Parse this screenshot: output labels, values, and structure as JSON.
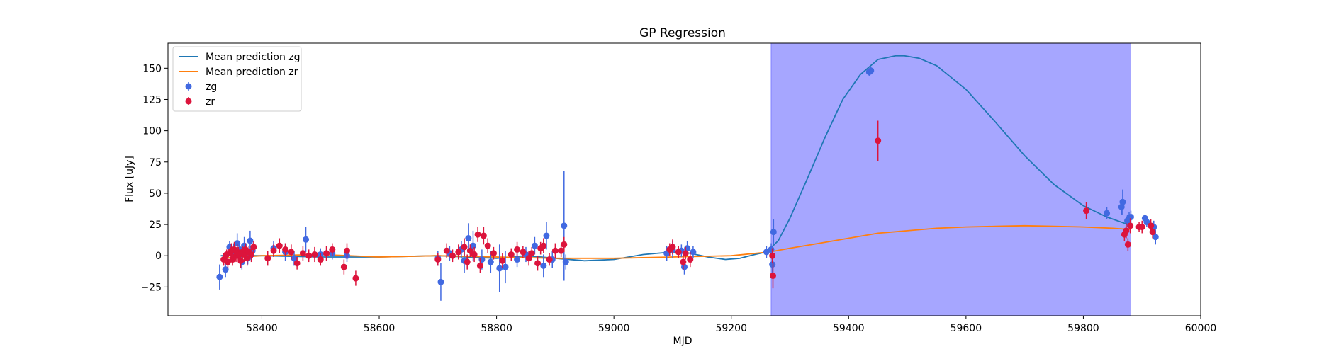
{
  "chart_data": {
    "type": "scatter",
    "title": "GP Regression",
    "xlabel": "MJD",
    "ylabel": "Flux [uJy]",
    "xlim": [
      58240,
      60000
    ],
    "ylim": [
      -48,
      170
    ],
    "xticks": [
      58400,
      58600,
      58800,
      59000,
      59200,
      59400,
      59600,
      59800,
      60000
    ],
    "yticks": [
      -25,
      0,
      25,
      50,
      75,
      100,
      125,
      150
    ],
    "grid": false,
    "legend_position": "top-left",
    "highlight_region": {
      "x0": 59268,
      "x1": 59881,
      "color": "#a6a6ff"
    },
    "series": [
      {
        "name": "Mean prediction zg",
        "kind": "line",
        "color": "#1f77b4",
        "x": [
          58330,
          58400,
          58500,
          58600,
          58700,
          58800,
          58850,
          58900,
          58950,
          59000,
          59050,
          59100,
          59130,
          59160,
          59190,
          59215,
          59240,
          59260,
          59280,
          59300,
          59330,
          59360,
          59390,
          59420,
          59450,
          59480,
          59495,
          59520,
          59550,
          59600,
          59650,
          59700,
          59750,
          59800,
          59840,
          59870,
          59880
        ],
        "y": [
          0,
          0,
          -1,
          -1,
          0,
          -2,
          0,
          -2,
          -4,
          -3,
          1,
          3,
          2,
          -1,
          -3,
          -2,
          1,
          3,
          12,
          30,
          62,
          95,
          125,
          145,
          157,
          160,
          160,
          158,
          152,
          133,
          107,
          80,
          57,
          40,
          31,
          26,
          24
        ]
      },
      {
        "name": "Mean prediction zr",
        "kind": "line",
        "color": "#ff7f0e",
        "x": [
          58330,
          58400,
          58500,
          58600,
          58700,
          58800,
          58900,
          59000,
          59100,
          59200,
          59265,
          59300,
          59350,
          59400,
          59450,
          59500,
          59550,
          59600,
          59650,
          59700,
          59750,
          59800,
          59850,
          59880
        ],
        "y": [
          -2,
          0,
          1,
          -1,
          0,
          -1,
          -2,
          -2,
          -1,
          0,
          3,
          6,
          10,
          14,
          18,
          20,
          22,
          23,
          23.5,
          24,
          23.5,
          23,
          22,
          21
        ]
      },
      {
        "name": "zg",
        "kind": "errorbar",
        "color": "#4169e1",
        "x": [
          58328,
          58338,
          58345,
          58352,
          58358,
          58362,
          58366,
          58370,
          58376,
          58380,
          58384,
          58420,
          58440,
          58455,
          58475,
          58500,
          58520,
          58545,
          58700,
          58705,
          58720,
          58740,
          58745,
          58752,
          58760,
          58775,
          58790,
          58805,
          58815,
          58835,
          58850,
          58865,
          58880,
          58885,
          58895,
          58915,
          58918,
          59090,
          59100,
          59115,
          59120,
          59125,
          59135,
          59260,
          59268,
          59270,
          59272,
          59435,
          59438,
          59840,
          59865,
          59867,
          59875,
          59878,
          59881,
          59905,
          59908,
          59920,
          59923
        ],
        "y": [
          -17,
          -11,
          7,
          3,
          10,
          5,
          -5,
          8,
          -2,
          12,
          4,
          6,
          3,
          -2,
          13,
          1,
          2,
          0,
          -2,
          -21,
          2,
          5,
          -4,
          14,
          8,
          -3,
          -5,
          -10,
          -9,
          -3,
          1,
          8,
          -8,
          16,
          -3,
          24,
          -5,
          2,
          5,
          4,
          -9,
          6,
          3,
          3,
          5,
          -7,
          19,
          147,
          148,
          34,
          39,
          43,
          28,
          30,
          31,
          30,
          27,
          23,
          15
        ],
        "yerr": [
          10,
          6,
          5,
          7,
          8,
          6,
          6,
          7,
          5,
          8,
          6,
          6,
          7,
          6,
          10,
          5,
          5,
          5,
          6,
          15,
          6,
          7,
          10,
          12,
          12,
          8,
          9,
          19,
          13,
          6,
          6,
          7,
          9,
          11,
          7,
          44,
          6,
          6,
          7,
          5,
          6,
          6,
          5,
          5,
          5,
          8,
          10,
          3,
          3,
          5,
          6,
          10,
          5,
          5,
          5,
          3,
          4,
          5,
          6
        ]
      },
      {
        "name": "zr",
        "kind": "errorbar",
        "color": "#dc143c",
        "x": [
          58335,
          58340,
          58342,
          58346,
          58348,
          58350,
          58353,
          58356,
          58358,
          58360,
          58362,
          58364,
          58367,
          58370,
          58372,
          58375,
          58378,
          58382,
          58386,
          58410,
          58420,
          58430,
          58440,
          58450,
          58460,
          58470,
          58480,
          58490,
          58500,
          58510,
          58520,
          58540,
          58545,
          58560,
          58700,
          58715,
          58725,
          58735,
          58745,
          58750,
          58755,
          58762,
          58768,
          58772,
          58778,
          58785,
          58795,
          58810,
          58825,
          58835,
          58845,
          58855,
          58860,
          58870,
          58875,
          58880,
          58890,
          58900,
          58910,
          58915,
          59095,
          59100,
          59110,
          59118,
          59122,
          59130,
          59270,
          59271,
          59450,
          59805,
          59870,
          59873,
          59876,
          59880,
          59895,
          59900,
          59915,
          59918
        ],
        "y": [
          -3,
          1,
          -5,
          2,
          4,
          -3,
          5,
          0,
          3,
          2,
          1,
          -4,
          3,
          1,
          5,
          -2,
          3,
          1,
          7,
          -2,
          4,
          8,
          5,
          3,
          -6,
          2,
          0,
          1,
          -3,
          2,
          5,
          -9,
          4,
          -18,
          -3,
          4,
          0,
          3,
          7,
          -5,
          4,
          1,
          17,
          -8,
          16,
          8,
          2,
          -4,
          1,
          5,
          3,
          -2,
          2,
          -6,
          6,
          8,
          -3,
          4,
          4,
          9,
          5,
          7,
          3,
          -5,
          2,
          -3,
          0,
          -16,
          92,
          36,
          17,
          20,
          9,
          24,
          23,
          23,
          24,
          19
        ],
        "yerr": [
          5,
          4,
          5,
          5,
          6,
          5,
          6,
          5,
          6,
          5,
          4,
          6,
          5,
          6,
          5,
          6,
          5,
          6,
          5,
          6,
          5,
          6,
          5,
          6,
          5,
          6,
          5,
          6,
          5,
          6,
          5,
          6,
          6,
          6,
          5,
          6,
          5,
          6,
          7,
          6,
          5,
          6,
          6,
          6,
          7,
          6,
          5,
          6,
          5,
          6,
          5,
          6,
          5,
          6,
          5,
          6,
          5,
          6,
          5,
          6,
          5,
          6,
          5,
          6,
          5,
          6,
          6,
          10,
          16,
          7,
          5,
          6,
          5,
          6,
          4,
          5,
          5,
          5
        ]
      }
    ]
  }
}
